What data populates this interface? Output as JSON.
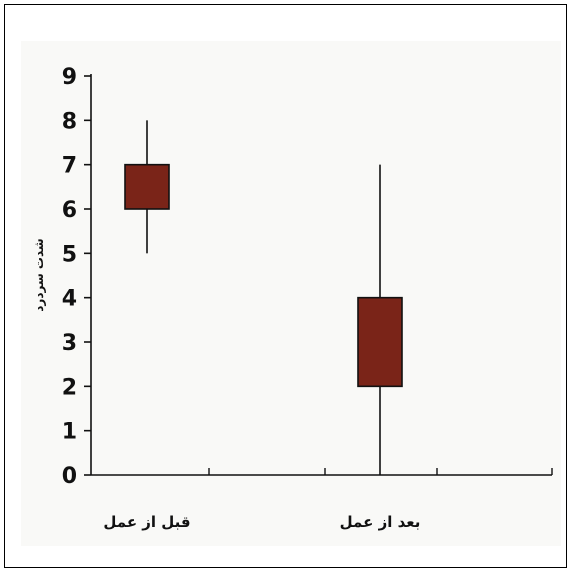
{
  "chart_data": {
    "type": "box",
    "title": "",
    "xlabel": "",
    "ylabel": "شدت سردرد",
    "ylim": [
      0,
      9
    ],
    "yticks": [
      0,
      1,
      2,
      3,
      4,
      5,
      6,
      7,
      8,
      9
    ],
    "categories": [
      "قبل از عمل",
      "بعد از عمل"
    ],
    "boxes": [
      {
        "category": "قبل از عمل",
        "min": 5,
        "q1": 6,
        "q3": 7,
        "max": 8
      },
      {
        "category": "بعد از عمل",
        "min": 0,
        "q1": 2,
        "q3": 4,
        "max": 7
      }
    ],
    "box_color": "#7a2418",
    "background_color": "#f9f9f7",
    "grid": false
  }
}
